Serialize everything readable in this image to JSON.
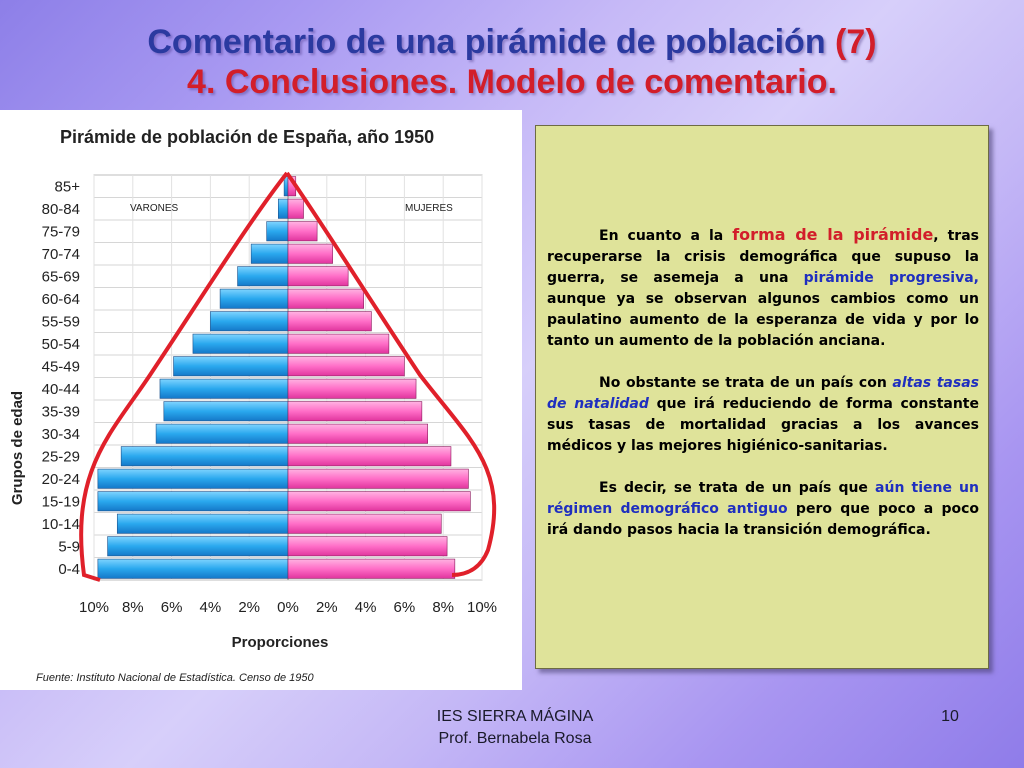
{
  "slide": {
    "title_line1": "Comentario de una pirámide de población",
    "title_line1_accent": "(7)",
    "title_line2": "4. Conclusiones. Modelo de comentario.",
    "footer_school": "IES SIERRA MÁGINA",
    "footer_author": "Prof. Bernabela Rosa",
    "page_number": "10"
  },
  "comment": {
    "p1_a": "En cuanto a la ",
    "p1_hl": "forma de la pirámide",
    "p1_b": ", tras recuperarse la crisis demográfica que supuso la guerra, se asemeja a una ",
    "p1_hl2": "pirámide progresiva,",
    "p1_c": " aunque ya se observan algunos cambios como un paulatino aumento de la esperanza de vida y por lo tanto un aumento de la población anciana.",
    "p2_a": "No obstante se trata de un país con ",
    "p2_hl": "altas tasas de natalidad",
    "p2_b": " que irá reduciendo de forma constante sus tasas de mortalidad gracias a los avances médicos y las mejores higiénico-sanitarias.",
    "p3_a": "Es decir, se trata de un país que ",
    "p3_hl": "aún tiene un régimen demográfico antiguo",
    "p3_b": " pero que poco a poco irá dando pasos hacia la transición demográfica."
  },
  "chart_data": {
    "type": "bar",
    "orientation": "horizontal-pyramid",
    "title": "Pirámide de población de España, año 1950",
    "xlabel": "Proporciones",
    "ylabel": "Grupos de edad",
    "source": "Fuente: Instituto Nacional de Estadística. Censo de 1950",
    "categories": [
      "0-4",
      "5-9",
      "10-14",
      "15-19",
      "20-24",
      "25-29",
      "30-34",
      "35-39",
      "40-44",
      "45-49",
      "50-54",
      "55-59",
      "60-64",
      "65-69",
      "70-74",
      "75-79",
      "80-84",
      "85+"
    ],
    "x_ticks": [
      "10%",
      "8%",
      "6%",
      "4%",
      "2%",
      "0%",
      "2%",
      "4%",
      "6%",
      "8%",
      "10%"
    ],
    "xlim": [
      -10,
      10
    ],
    "grid": true,
    "series": [
      {
        "name": "VARONES",
        "color": "#2aa8ee",
        "values": [
          9.8,
          9.3,
          8.8,
          9.8,
          9.8,
          8.6,
          6.8,
          6.4,
          6.6,
          5.9,
          4.9,
          4.0,
          3.5,
          2.6,
          1.9,
          1.1,
          0.5,
          0.2
        ]
      },
      {
        "name": "MUJERES",
        "color": "#ff6ec7",
        "values": [
          8.6,
          8.2,
          7.9,
          9.4,
          9.3,
          8.4,
          7.2,
          6.9,
          6.6,
          6.0,
          5.2,
          4.3,
          3.9,
          3.1,
          2.3,
          1.5,
          0.8,
          0.4
        ]
      }
    ],
    "colors": {
      "male": "#2aa8ee",
      "female": "#ff6ec7",
      "outline": "#e0202a"
    }
  }
}
